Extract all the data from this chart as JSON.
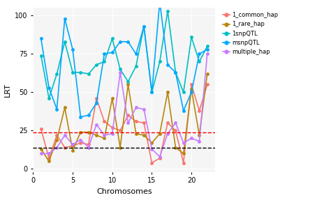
{
  "chromosomes": [
    1,
    2,
    3,
    4,
    5,
    6,
    7,
    8,
    9,
    10,
    11,
    12,
    13,
    14,
    15,
    16,
    17,
    18,
    19,
    20,
    21,
    22
  ],
  "series": {
    "1_common_hap": {
      "color": "#F8766D",
      "values": [
        26,
        7,
        22,
        14,
        15,
        17,
        16,
        46,
        31,
        27,
        25,
        35,
        31,
        30,
        4,
        7,
        30,
        25,
        4,
        55,
        38,
        55
      ]
    },
    "1_rare_hap": {
      "color": "#B8860B",
      "values": [
        13,
        5,
        19,
        40,
        12,
        24,
        24,
        22,
        20,
        46,
        14,
        55,
        23,
        22,
        17,
        23,
        50,
        14,
        10,
        52,
        22,
        62
      ]
    },
    "1snpQTL": {
      "color": "#00BFC4",
      "values": [
        74,
        46,
        62,
        83,
        63,
        63,
        62,
        68,
        70,
        85,
        65,
        57,
        67,
        93,
        50,
        70,
        103,
        63,
        50,
        86,
        70,
        80
      ]
    },
    "msnpQTL": {
      "color": "#00A9FF",
      "values": [
        85,
        53,
        39,
        98,
        78,
        34,
        35,
        43,
        75,
        76,
        83,
        83,
        75,
        93,
        50,
        109,
        68,
        63,
        38,
        50,
        75,
        78
      ]
    },
    "multiple_hap": {
      "color": "#C77CFF",
      "values": [
        10,
        10,
        14,
        22,
        16,
        19,
        14,
        29,
        22,
        23,
        63,
        30,
        40,
        39,
        13,
        8,
        23,
        30,
        17,
        20,
        18,
        75
      ]
    }
  },
  "hline_red": 24,
  "hline_black": 14,
  "xlabel": "Chromosomes",
  "ylabel": "LRT",
  "xlim": [
    0,
    23
  ],
  "ylim": [
    -2,
    105
  ],
  "yticks": [
    0,
    25,
    50,
    75,
    100
  ],
  "xticks": [
    0,
    5,
    10,
    15,
    20
  ],
  "background_color": "#ffffff",
  "plot_bg_color": "#f5f5f5",
  "grid_color": "#ffffff",
  "marker": "o",
  "markersize": 2.5,
  "linewidth": 1.2,
  "legend_labels": [
    "1_common_hap",
    "1_rare_hap",
    "1snpQTL",
    "msnpQTL",
    "multiple_hap"
  ],
  "legend_colors": [
    "#F8766D",
    "#B8860B",
    "#00BFC4",
    "#00A9FF",
    "#C77CFF"
  ]
}
